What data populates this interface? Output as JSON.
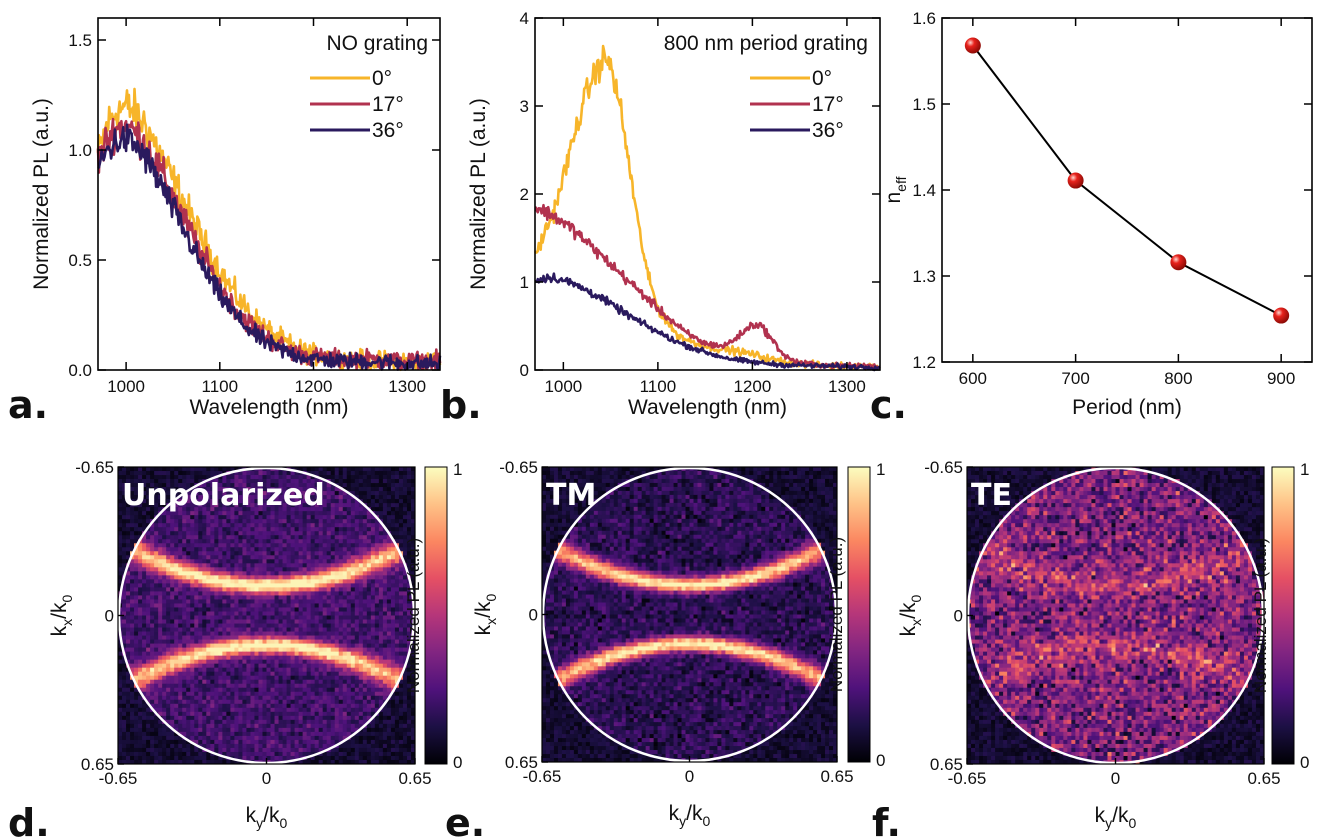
{
  "colors": {
    "deg0": "#F7B52A",
    "deg17": "#B1324F",
    "deg36": "#2A1A5E",
    "marker": "#E8221C",
    "circle": "#FFFFFF",
    "colormap": [
      "#000004",
      "#1C1044",
      "#4F127B",
      "#812581",
      "#B5367A",
      "#E55064",
      "#FB8761",
      "#FEC287",
      "#FCFDBF"
    ]
  },
  "chart_data": [
    {
      "id": "a",
      "type": "line",
      "panel_label": "a.",
      "legend_title": "NO grating",
      "xlabel": "Wavelength (nm)",
      "ylabel": "Normalized PL (a.u.)",
      "xlim": [
        970,
        1335
      ],
      "ylim": [
        0,
        1.6
      ],
      "xticks": [
        1000,
        1100,
        1200,
        1300
      ],
      "xtick_labels": [
        "1000",
        "1100",
        "1200",
        "1300"
      ],
      "yticks": [
        0,
        0.5,
        1.0,
        1.5
      ],
      "ytick_labels": [
        "0.0",
        "0.5",
        "1.0",
        "1.5"
      ],
      "legend_position": "top-right",
      "series": [
        {
          "name": "0°",
          "color_key": "deg0",
          "noise": 0.06,
          "x": [
            970,
            980,
            990,
            1000,
            1010,
            1020,
            1040,
            1060,
            1080,
            1100,
            1120,
            1140,
            1160,
            1180,
            1200,
            1230,
            1260,
            1300,
            1335
          ],
          "y": [
            0.98,
            1.12,
            1.18,
            1.2,
            1.17,
            1.12,
            0.95,
            0.78,
            0.6,
            0.45,
            0.32,
            0.22,
            0.15,
            0.1,
            0.07,
            0.05,
            0.04,
            0.04,
            0.04
          ]
        },
        {
          "name": "17°",
          "color_key": "deg17",
          "noise": 0.055,
          "x": [
            970,
            980,
            990,
            1000,
            1010,
            1020,
            1040,
            1060,
            1080,
            1100,
            1120,
            1140,
            1160,
            1180,
            1200,
            1230,
            1260,
            1300,
            1335
          ],
          "y": [
            0.95,
            1.05,
            1.1,
            1.11,
            1.08,
            1.03,
            0.88,
            0.7,
            0.53,
            0.38,
            0.26,
            0.18,
            0.12,
            0.08,
            0.06,
            0.05,
            0.05,
            0.04,
            0.04
          ]
        },
        {
          "name": "36°",
          "color_key": "deg36",
          "noise": 0.05,
          "x": [
            970,
            980,
            990,
            1000,
            1010,
            1020,
            1040,
            1060,
            1080,
            1100,
            1120,
            1140,
            1160,
            1180,
            1200,
            1230,
            1260,
            1300,
            1335
          ],
          "y": [
            0.92,
            1.0,
            1.04,
            1.05,
            1.02,
            0.97,
            0.82,
            0.65,
            0.48,
            0.34,
            0.23,
            0.15,
            0.1,
            0.07,
            0.05,
            0.04,
            0.04,
            0.03,
            0.03
          ]
        }
      ]
    },
    {
      "id": "b",
      "type": "line",
      "panel_label": "b.",
      "legend_title": "800 nm period grating",
      "xlabel": "Wavelength (nm)",
      "ylabel": "Normalized PL (a.u.)",
      "xlim": [
        970,
        1335
      ],
      "ylim": [
        0,
        4
      ],
      "xticks": [
        1000,
        1100,
        1200,
        1300
      ],
      "xtick_labels": [
        "1000",
        "1100",
        "1200",
        "1300"
      ],
      "yticks": [
        0,
        1,
        2,
        3,
        4
      ],
      "ytick_labels": [
        "0",
        "1",
        "2",
        "3",
        "4"
      ],
      "legend_position": "top-right",
      "series": [
        {
          "name": "0°",
          "color_key": "deg0",
          "noise": 0.05,
          "x": [
            970,
            990,
            1010,
            1020,
            1030,
            1040,
            1045,
            1050,
            1060,
            1070,
            1080,
            1090,
            1100,
            1120,
            1140,
            1160,
            1180,
            1200,
            1220,
            1250,
            1280,
            1335
          ],
          "y": [
            1.3,
            1.8,
            2.6,
            3.0,
            3.3,
            3.5,
            3.55,
            3.45,
            3.0,
            2.3,
            1.6,
            1.05,
            0.7,
            0.4,
            0.3,
            0.25,
            0.22,
            0.18,
            0.12,
            0.07,
            0.05,
            0.04
          ]
        },
        {
          "name": "17°",
          "color_key": "deg17",
          "noise": 0.04,
          "x": [
            970,
            990,
            1010,
            1030,
            1050,
            1070,
            1090,
            1110,
            1130,
            1150,
            1170,
            1185,
            1200,
            1210,
            1220,
            1235,
            1250,
            1280,
            1335
          ],
          "y": [
            1.85,
            1.75,
            1.6,
            1.4,
            1.2,
            1.0,
            0.8,
            0.6,
            0.42,
            0.3,
            0.27,
            0.38,
            0.52,
            0.5,
            0.35,
            0.15,
            0.08,
            0.05,
            0.04
          ]
        },
        {
          "name": "36°",
          "color_key": "deg36",
          "noise": 0.035,
          "x": [
            970,
            980,
            990,
            1000,
            1010,
            1020,
            1040,
            1060,
            1080,
            1100,
            1120,
            1140,
            1160,
            1180,
            1200,
            1230,
            1260,
            1300,
            1335
          ],
          "y": [
            1.0,
            1.05,
            1.05,
            1.02,
            0.98,
            0.93,
            0.82,
            0.68,
            0.55,
            0.43,
            0.32,
            0.24,
            0.17,
            0.12,
            0.09,
            0.06,
            0.05,
            0.04,
            0.03
          ]
        }
      ]
    },
    {
      "id": "c",
      "type": "scatter",
      "panel_label": "c.",
      "xlabel": "Period (nm)",
      "ylabel": "n",
      "ylabel_sub": "eff",
      "xlim": [
        570,
        930
      ],
      "ylim": [
        1.2,
        1.6
      ],
      "xticks": [
        600,
        700,
        800,
        900
      ],
      "xtick_labels": [
        "600",
        "700",
        "800",
        "900"
      ],
      "yticks": [
        1.2,
        1.3,
        1.4,
        1.5,
        1.6
      ],
      "ytick_labels": [
        "1.2",
        "1.3",
        "1.4",
        "1.5",
        "1.6"
      ],
      "x": [
        600,
        700,
        800,
        900
      ],
      "y": [
        1.568,
        1.411,
        1.316,
        1.254
      ]
    },
    {
      "id": "d",
      "type": "heatmap",
      "panel_label": "d.",
      "map_title": "Unpolarized",
      "xlabel": "k",
      "xlabel_sub": "y",
      "xlabel_tail": "/k",
      "xlabel_tail_sub": "0",
      "ylabel": "k",
      "ylabel_sub": "x",
      "ylabel_tail": "/k",
      "ylabel_tail_sub": "0",
      "xtick_labels": [
        "-0.65",
        "0",
        "0.65"
      ],
      "ytick_labels": [
        "-0.65",
        "0",
        "0.65"
      ],
      "colorbar_label": "Normalized PL (a.u.)",
      "colorbar_ticks": [
        "1",
        "0"
      ],
      "band_strength": 0.85,
      "background": 0.22,
      "noise": 0.1,
      "band_offset": 0.2,
      "band_curvature": 0.55,
      "band_width": 0.055
    },
    {
      "id": "e",
      "type": "heatmap",
      "panel_label": "e.",
      "map_title": "TM",
      "xlabel": "k",
      "xlabel_sub": "y",
      "xlabel_tail": "/k",
      "xlabel_tail_sub": "0",
      "ylabel": "k",
      "ylabel_sub": "x",
      "ylabel_tail": "/k",
      "ylabel_tail_sub": "0",
      "xtick_labels": [
        "-0.65",
        "0",
        "0.65"
      ],
      "ytick_labels": [
        "-0.65",
        "0",
        "0.65"
      ],
      "colorbar_label": "Normalized PL (a.u.)",
      "colorbar_ticks": [
        "1",
        "0"
      ],
      "band_strength": 0.88,
      "background": 0.16,
      "noise": 0.1,
      "band_offset": 0.2,
      "band_curvature": 0.55,
      "band_width": 0.05
    },
    {
      "id": "f",
      "type": "heatmap",
      "panel_label": "f.",
      "map_title": "TE",
      "xlabel": "k",
      "xlabel_sub": "y",
      "xlabel_tail": "/k",
      "xlabel_tail_sub": "0",
      "ylabel": "k",
      "ylabel_sub": "x",
      "ylabel_tail": "/k",
      "ylabel_tail_sub": "0",
      "xtick_labels": [
        "-0.65",
        "0",
        "0.65"
      ],
      "ytick_labels": [
        "-0.65",
        "0",
        "0.65"
      ],
      "colorbar_label": "Normalized PL (a.u.)",
      "colorbar_ticks": [
        "1",
        "0"
      ],
      "band_strength": 0.18,
      "background": 0.36,
      "noise": 0.22,
      "band_offset": 0.2,
      "band_curvature": 0.55,
      "band_width": 0.08
    }
  ]
}
